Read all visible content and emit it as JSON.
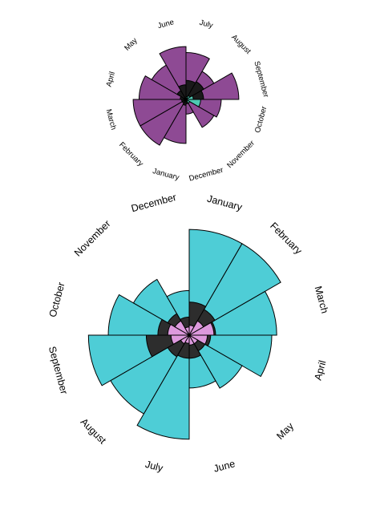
{
  "chart_data": [
    {
      "type": "polar-area",
      "categories": [
        "July",
        "August",
        "September",
        "October",
        "November",
        "December",
        "January",
        "February",
        "March",
        "April",
        "May",
        "June"
      ],
      "series": [
        {
          "values": [
            3.2,
            2.2,
            3.6,
            2.4,
            2.2,
            1.0,
            3.0,
            3.6,
            3.6,
            3.2,
            2.7,
            3.6
          ],
          "color": "#8e4a94"
        },
        {
          "values": [
            1.3,
            1.4,
            1.2,
            0.6,
            0.3,
            0.3,
            0.4,
            0.3,
            0.3,
            0.4,
            0.7,
            1.0
          ],
          "color": "#1a1a1a"
        },
        {
          "values": [
            0.2,
            0.3,
            0.5,
            1.0,
            0.3,
            0.1,
            0.1,
            0.1,
            0.1,
            0.15,
            0.1,
            0.1
          ],
          "color": "#4ecab3"
        }
      ]
    },
    {
      "type": "polar-area",
      "categories": [
        "January",
        "February",
        "March",
        "April",
        "May",
        "June",
        "July",
        "August",
        "September",
        "October",
        "November",
        "December"
      ],
      "series": [
        {
          "values": [
            6.4,
            6.4,
            5.3,
            5.0,
            3.7,
            3.2,
            6.3,
            5.5,
            6.1,
            4.9,
            3.9,
            2.7
          ],
          "color": "#4ecdd6"
        },
        {
          "values": [
            2.0,
            1.8,
            1.6,
            1.3,
            1.1,
            1.4,
            1.4,
            1.5,
            2.6,
            1.9,
            1.5,
            1.1
          ],
          "color": "#2d2d2d"
        },
        {
          "values": [
            0.6,
            1.0,
            1.5,
            1.1,
            0.6,
            0.6,
            0.5,
            0.6,
            1.1,
            1.3,
            1.0,
            0.5
          ],
          "color": "#dd99dd"
        }
      ]
    }
  ]
}
